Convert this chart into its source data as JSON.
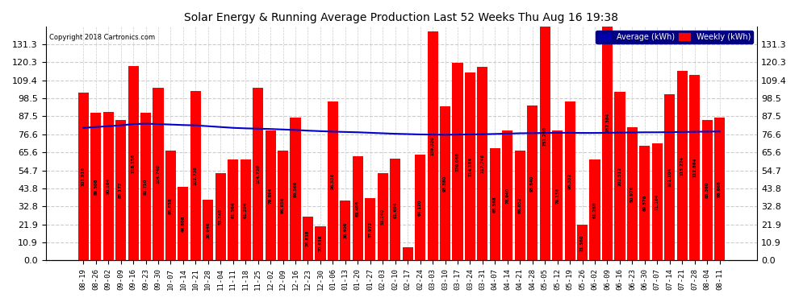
{
  "title": "Solar Energy & Running Average Production Last 52 Weeks Thu Aug 16 19:38",
  "copyright": "Copyright 2018 Cartronics.com",
  "bar_color": "#FF0000",
  "avg_line_color": "#0000CC",
  "background_color": "#FFFFFF",
  "grid_color": "#CCCCCC",
  "ylim": [
    0.0,
    142.0
  ],
  "yticks": [
    0.0,
    10.9,
    21.9,
    32.8,
    43.8,
    54.7,
    65.6,
    76.6,
    87.5,
    98.5,
    109.4,
    120.3,
    131.3
  ],
  "xlabel_fontsize": 6.5,
  "ylabel_fontsize": 8,
  "categories": [
    "08-19",
    "08-26",
    "09-02",
    "09-09",
    "09-16",
    "09-23",
    "09-30",
    "10-07",
    "10-14",
    "10-21",
    "10-28",
    "11-04",
    "11-11",
    "11-18",
    "11-25",
    "12-02",
    "12-09",
    "12-16",
    "12-23",
    "12-30",
    "01-06",
    "01-13",
    "01-20",
    "01-27",
    "02-03",
    "02-10",
    "02-17",
    "02-24",
    "03-03",
    "03-10",
    "03-17",
    "03-24",
    "03-31",
    "04-07",
    "04-14",
    "04-21",
    "04-28",
    "05-05",
    "05-12",
    "05-19",
    "05-26",
    "06-02",
    "06-09",
    "06-16",
    "06-23",
    "06-30",
    "07-07",
    "07-14",
    "07-21",
    "07-28",
    "08-04",
    "08-11"
  ],
  "weekly_values": [
    101.916,
    89.508,
    90.164,
    85.172,
    118.156,
    89.75,
    104.74,
    66.658,
    44.808,
    102.738,
    36.946,
    53.14,
    61.364,
    61.294,
    104.73,
    78.894,
    66.856,
    86.566,
    26.838,
    20.638,
    96.538,
    36.406,
    63.406,
    37.972,
    53.14,
    61.694,
    7.826,
    64.12,
    139.02,
    93.38,
    120.06,
    114.184,
    117.748,
    68.368,
    78.94,
    66.852,
    93.84,
    151.26,
    79.136,
    96.332,
    21.56,
    61.28,
    167.364,
    102.512,
    80.976,
    69.576,
    71.104,
    101.104,
    115.224,
    112.864,
    85.36,
    86.668
  ],
  "avg_values": [
    80.5,
    81.0,
    81.5,
    82.0,
    82.8,
    83.0,
    82.8,
    82.5,
    82.2,
    82.0,
    81.5,
    81.0,
    80.5,
    80.2,
    80.0,
    79.8,
    79.5,
    79.2,
    78.8,
    78.5,
    78.2,
    78.0,
    77.8,
    77.5,
    77.2,
    76.9,
    76.7,
    76.5,
    76.4,
    76.3,
    76.4,
    76.5,
    76.6,
    76.8,
    77.0,
    77.2,
    77.3,
    77.4,
    77.5,
    77.5,
    77.4,
    77.4,
    77.5,
    77.6,
    77.7,
    77.8,
    77.8,
    77.9,
    78.0,
    78.1,
    78.2,
    78.3
  ],
  "legend_avg_color": "#0000AA",
  "legend_weekly_color": "#FF0000",
  "legend_avg_label": "Average (kWh)",
  "legend_weekly_label": "Weekly (kWh)"
}
